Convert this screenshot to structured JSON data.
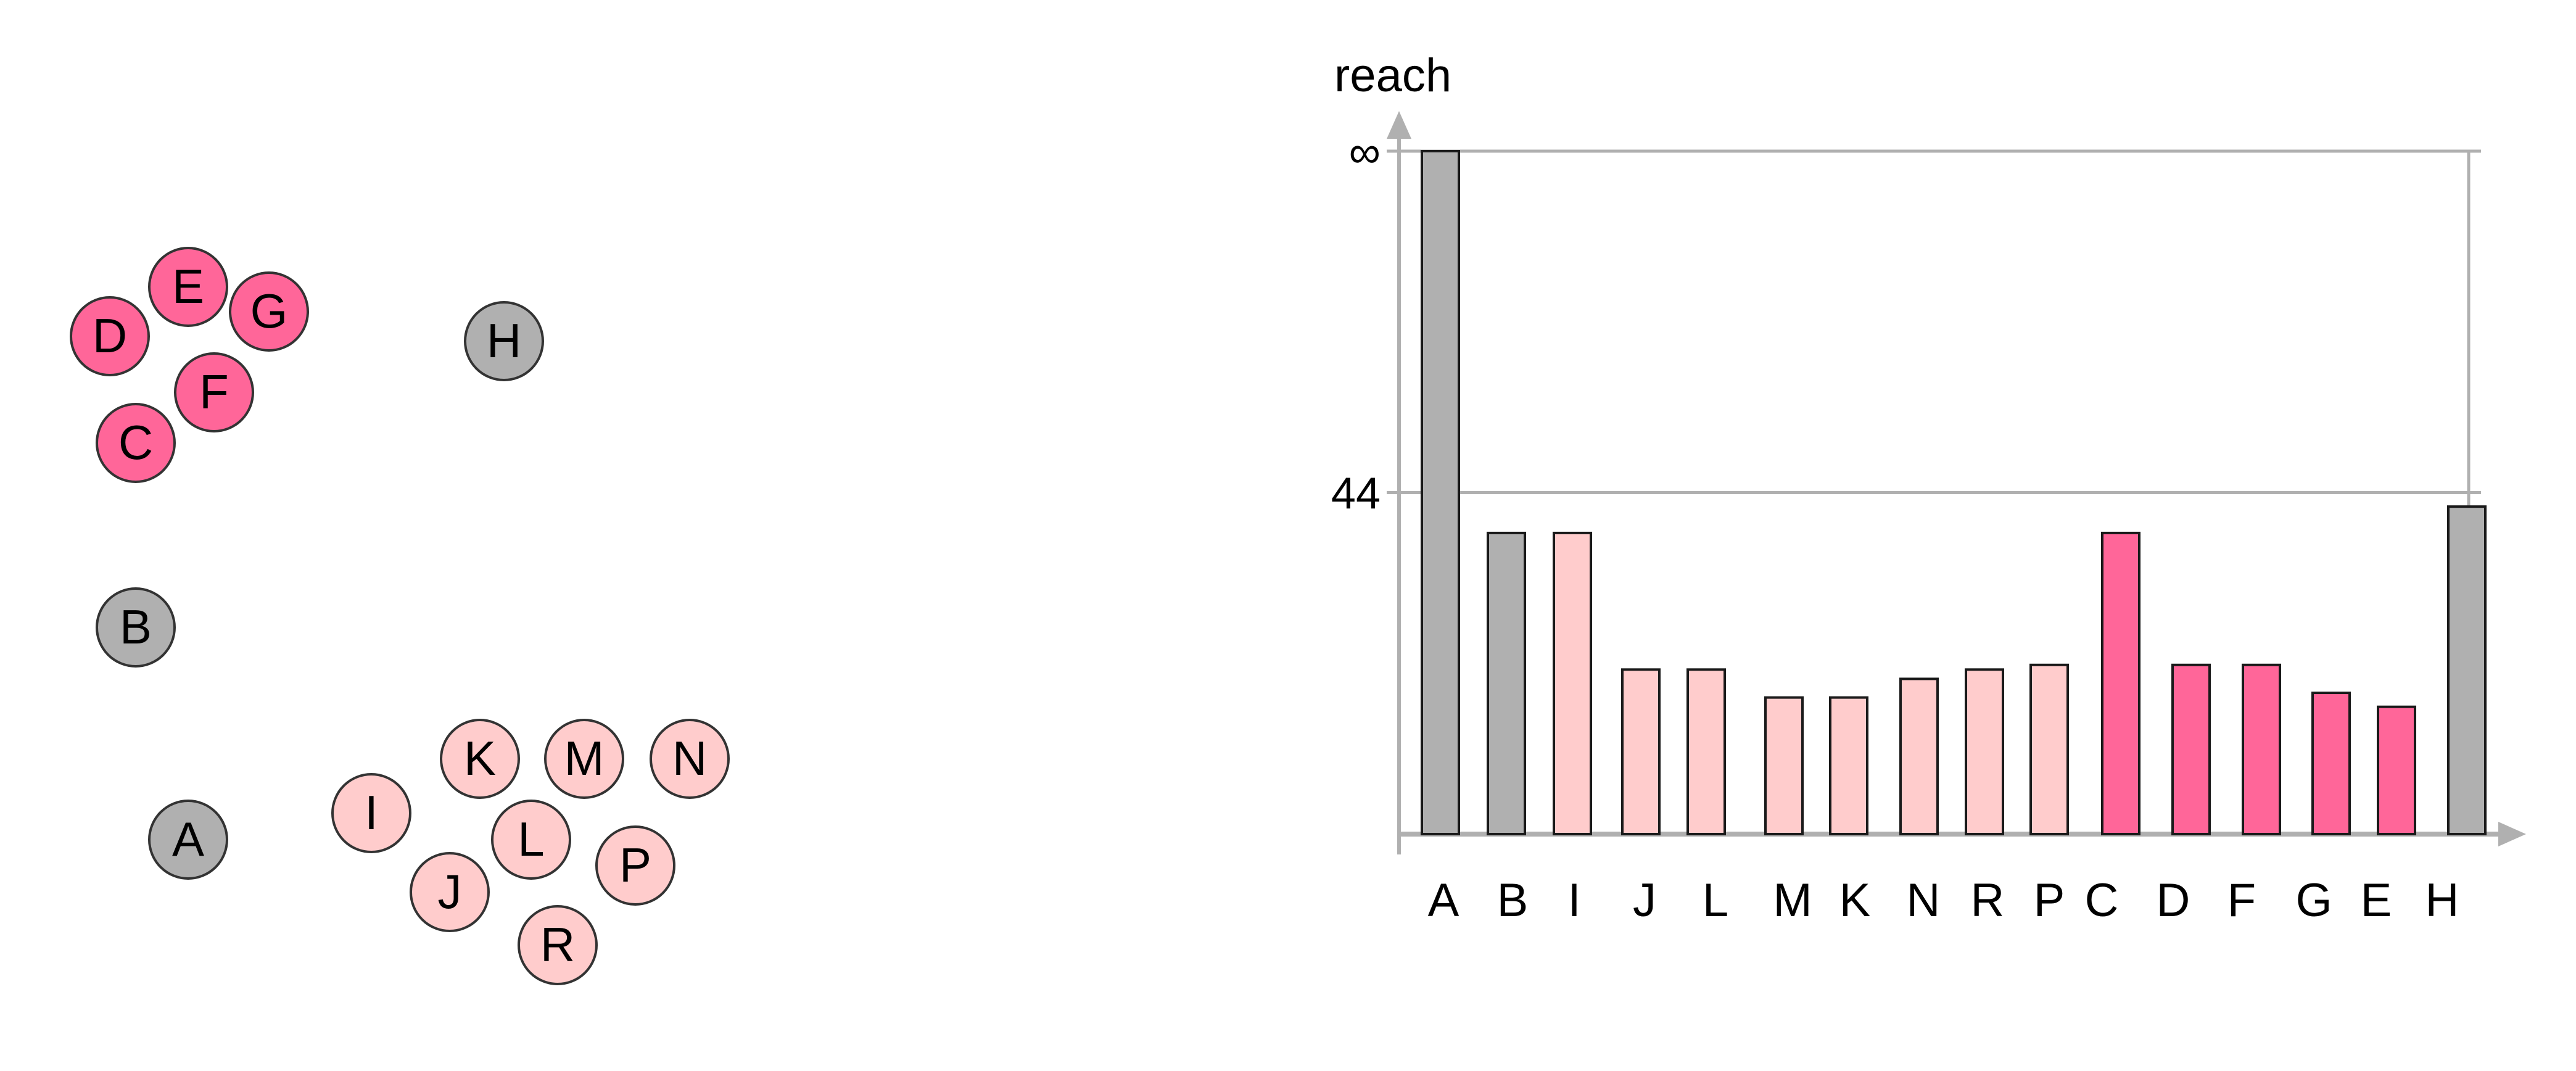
{
  "colors": {
    "noise": "#b0b0b0",
    "cluster_light": "#ffcccc",
    "cluster_dark": "#ff6699",
    "axis": "#b0b0b0",
    "outline": "#1a1a1a"
  },
  "scatter": {
    "points": [
      {
        "label": "D",
        "group": "cluster_dark"
      },
      {
        "label": "E",
        "group": "cluster_dark"
      },
      {
        "label": "G",
        "group": "cluster_dark"
      },
      {
        "label": "F",
        "group": "cluster_dark"
      },
      {
        "label": "C",
        "group": "cluster_dark"
      },
      {
        "label": "H",
        "group": "noise"
      },
      {
        "label": "B",
        "group": "noise"
      },
      {
        "label": "A",
        "group": "noise"
      },
      {
        "label": "I",
        "group": "cluster_light"
      },
      {
        "label": "K",
        "group": "cluster_light"
      },
      {
        "label": "M",
        "group": "cluster_light"
      },
      {
        "label": "N",
        "group": "cluster_light"
      },
      {
        "label": "L",
        "group": "cluster_light"
      },
      {
        "label": "J",
        "group": "cluster_light"
      },
      {
        "label": "P",
        "group": "cluster_light"
      },
      {
        "label": "R",
        "group": "cluster_light"
      }
    ]
  },
  "chart_data": {
    "type": "bar",
    "ylabel": "reach",
    "yticks": [
      {
        "value": 44,
        "label": "44"
      },
      {
        "value": 88,
        "label": "∞"
      }
    ],
    "ylim": [
      0,
      88
    ],
    "grid": true,
    "categories": [
      "A",
      "B",
      "I",
      "J",
      "L",
      "M",
      "K",
      "N",
      "R",
      "P",
      "C",
      "D",
      "F",
      "G",
      "E",
      "H"
    ],
    "values": [
      88,
      38.8,
      38.8,
      21.2,
      21.2,
      17.6,
      17.6,
      20,
      21.2,
      21.8,
      38.8,
      21.8,
      21.8,
      18.2,
      16.4,
      42.2
    ],
    "groups": [
      "noise",
      "noise",
      "cluster_light",
      "cluster_light",
      "cluster_light",
      "cluster_light",
      "cluster_light",
      "cluster_light",
      "cluster_light",
      "cluster_light",
      "cluster_dark",
      "cluster_dark",
      "cluster_dark",
      "cluster_dark",
      "cluster_dark",
      "noise"
    ]
  }
}
